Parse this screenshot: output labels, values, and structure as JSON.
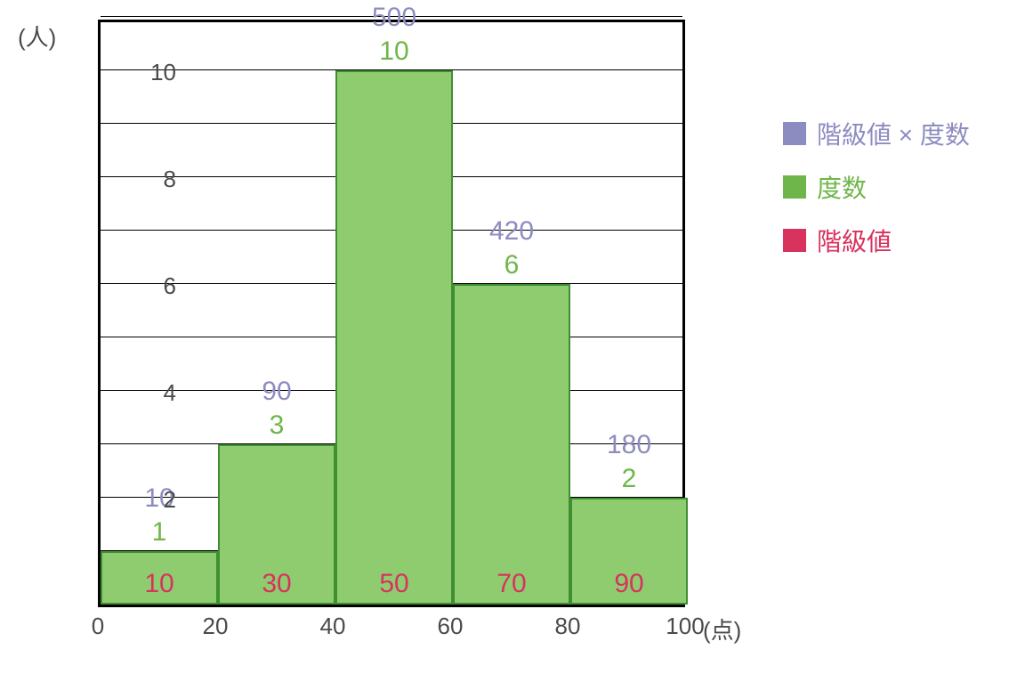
{
  "chart": {
    "type": "histogram",
    "y_axis_label": "(人)",
    "x_axis_label": "(点)",
    "xlim": [
      0,
      100
    ],
    "ylim": [
      0,
      11
    ],
    "x_ticks": [
      0,
      20,
      40,
      60,
      80,
      100
    ],
    "y_ticks": [
      2,
      4,
      6,
      8,
      10
    ],
    "y_gridlines": [
      1,
      2,
      3,
      4,
      5,
      6,
      7,
      8,
      9,
      10,
      11
    ],
    "bin_width": 20,
    "bars": [
      {
        "x_start": 0,
        "x_end": 20,
        "class_value": 10,
        "frequency": 1,
        "product": 10
      },
      {
        "x_start": 20,
        "x_end": 40,
        "class_value": 30,
        "frequency": 3,
        "product": 90
      },
      {
        "x_start": 40,
        "x_end": 60,
        "class_value": 50,
        "frequency": 10,
        "product": 500
      },
      {
        "x_start": 60,
        "x_end": 80,
        "class_value": 70,
        "frequency": 6,
        "product": 420
      },
      {
        "x_start": 80,
        "x_end": 100,
        "class_value": 90,
        "frequency": 2,
        "product": 180
      }
    ],
    "colors": {
      "bar_fill": "#8ecc6f",
      "bar_stroke": "#3f8f32",
      "product_text": "#8d8cc0",
      "frequency_text": "#6fb64a",
      "class_text": "#d8325e",
      "axis_text": "#4a4a4a",
      "border": "#000000",
      "background": "#ffffff"
    },
    "font_sizes": {
      "axis_label": 26,
      "tick_label": 26,
      "value_label": 30,
      "legend": 28
    }
  },
  "legend": {
    "items": [
      {
        "label": "階級値 × 度数",
        "color": "#8d8cc0"
      },
      {
        "label": "度数",
        "color": "#6fb64a"
      },
      {
        "label": "階級値",
        "color": "#d8325e"
      }
    ]
  }
}
